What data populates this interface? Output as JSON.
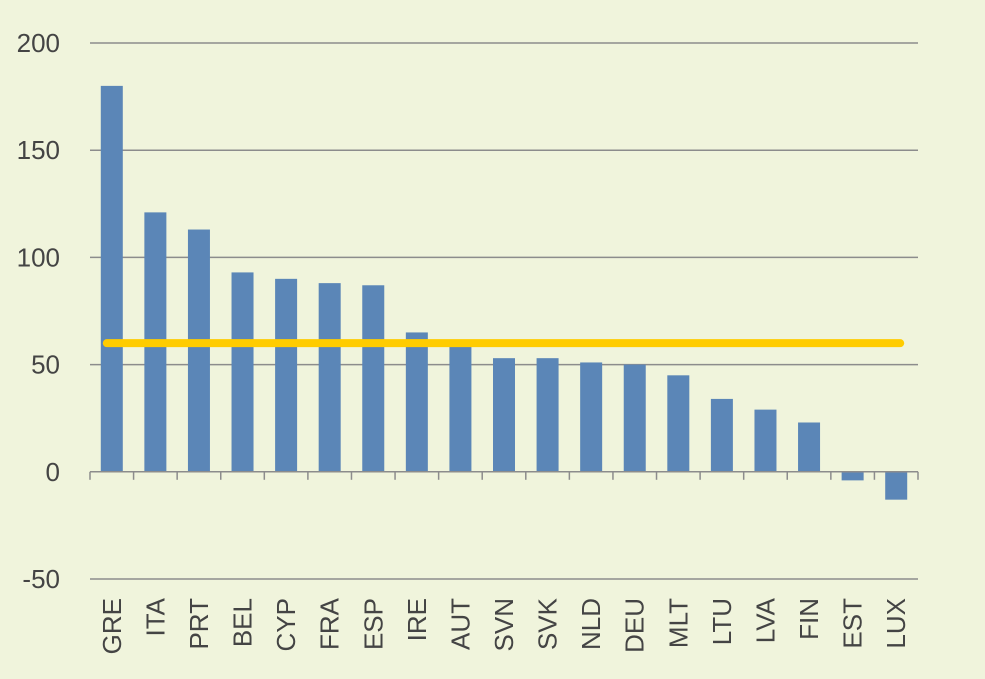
{
  "chart_data": {
    "type": "bar",
    "categories": [
      "GRE",
      "ITA",
      "PRT",
      "BEL",
      "CYP",
      "FRA",
      "ESP",
      "IRE",
      "AUT",
      "SVN",
      "SVK",
      "NLD",
      "DEU",
      "MLT",
      "LTU",
      "LVA",
      "FIN",
      "EST",
      "LUX"
    ],
    "series": [
      {
        "values": [
          180,
          121,
          113,
          93,
          90,
          88,
          87,
          65,
          60,
          53,
          53,
          51,
          50,
          45,
          34,
          29,
          23,
          -4,
          -13
        ]
      }
    ],
    "reference_line": {
      "value": 60
    },
    "ylim": [
      -50,
      200
    ],
    "yticks": [
      200,
      150,
      100,
      50,
      0,
      -50
    ],
    "grid": true,
    "colors": {
      "bar": "#5b86b7",
      "reference_line": "#ffcc00",
      "grid": "#8c8c8c",
      "background": "#f0f4dc"
    }
  }
}
